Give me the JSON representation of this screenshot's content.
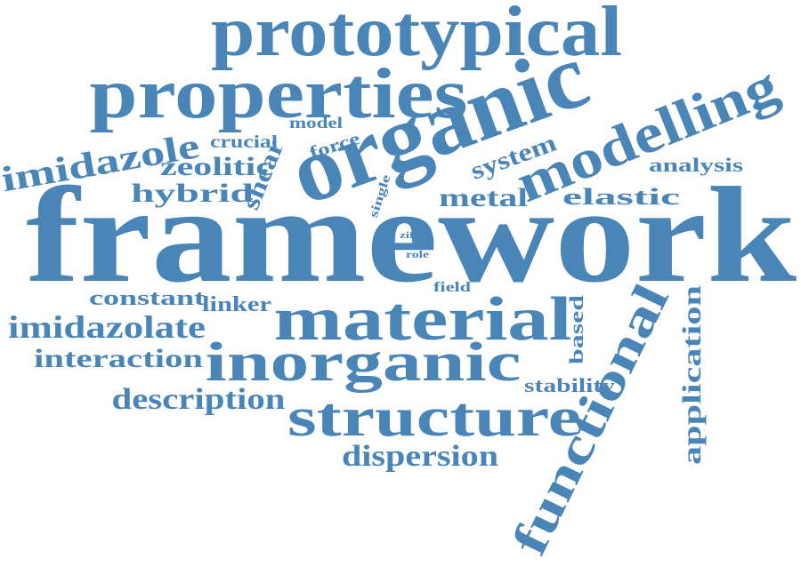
{
  "cloud": {
    "color": "#4a85b8",
    "background": "#ffffff",
    "words": {
      "framework": "framework",
      "organic": "organic",
      "prototypical": "prototypical",
      "properties": "properties",
      "modelling": "modelling",
      "material": "material",
      "inorganic": "inorganic",
      "structure": "structure",
      "functional": "functional",
      "imidazole": "imidazole",
      "zeolitic": "zeolitic",
      "hybrid": "hybrid",
      "shear": "shear",
      "crucial": "crucial",
      "model": "model",
      "force": "force",
      "system": "system",
      "analysis": "analysis",
      "metal": "metal",
      "elastic": "elastic",
      "single": "single",
      "zifs": "zifs",
      "role": "role",
      "field": "field",
      "constant": "constant",
      "linker": "linker",
      "imidazolate": "imidazolate",
      "interaction": "interaction",
      "description": "description",
      "based": "based",
      "stability": "stability",
      "application": "application",
      "dispersion": "dispersion"
    }
  }
}
